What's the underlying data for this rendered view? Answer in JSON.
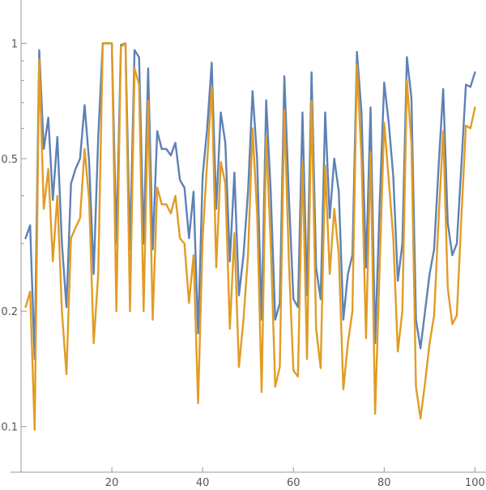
{
  "chart_data": {
    "type": "line",
    "title": "",
    "xlabel": "",
    "ylabel": "",
    "y_scale": "log",
    "xlim": [
      0,
      101
    ],
    "ylim": [
      0.076,
      1.26
    ],
    "x_ticks": [
      20,
      40,
      60,
      80,
      100
    ],
    "x_tick_labels": [
      "20",
      "40",
      "60",
      "80",
      "100"
    ],
    "y_ticks": [
      0.1,
      0.2,
      0.5,
      1
    ],
    "y_tick_labels": [
      "0.1",
      "0.2",
      "0.5",
      "1"
    ],
    "grid": false,
    "legend": "none",
    "x": [
      1,
      2,
      3,
      4,
      5,
      6,
      7,
      8,
      9,
      10,
      11,
      12,
      13,
      14,
      15,
      16,
      17,
      18,
      19,
      20,
      21,
      22,
      23,
      24,
      25,
      26,
      27,
      28,
      29,
      30,
      31,
      32,
      33,
      34,
      35,
      36,
      37,
      38,
      39,
      40,
      41,
      42,
      43,
      44,
      45,
      46,
      47,
      48,
      49,
      50,
      51,
      52,
      53,
      54,
      55,
      56,
      57,
      58,
      59,
      60,
      61,
      62,
      63,
      64,
      65,
      66,
      67,
      68,
      69,
      70,
      71,
      72,
      73,
      74,
      75,
      76,
      77,
      78,
      79,
      80,
      81,
      82,
      83,
      84,
      85,
      86,
      87,
      88,
      89,
      90,
      91,
      92,
      93,
      94,
      95,
      96,
      97,
      98,
      99,
      100
    ],
    "series": [
      {
        "color": "#5E81B5",
        "values": [
          0.31,
          0.335,
          0.15,
          0.96,
          0.53,
          0.64,
          0.39,
          0.57,
          0.3,
          0.205,
          0.43,
          0.47,
          0.5,
          0.69,
          0.49,
          0.25,
          0.57,
          1.0,
          1.0,
          1.0,
          0.3,
          0.99,
          1.0,
          0.29,
          0.96,
          0.92,
          0.3,
          0.86,
          0.29,
          0.59,
          0.53,
          0.53,
          0.51,
          0.55,
          0.44,
          0.42,
          0.31,
          0.41,
          0.175,
          0.45,
          0.6,
          0.89,
          0.37,
          0.66,
          0.55,
          0.27,
          0.46,
          0.22,
          0.28,
          0.41,
          0.75,
          0.5,
          0.19,
          0.71,
          0.41,
          0.19,
          0.21,
          0.82,
          0.4,
          0.215,
          0.205,
          0.66,
          0.22,
          0.84,
          0.26,
          0.215,
          0.66,
          0.35,
          0.5,
          0.41,
          0.19,
          0.25,
          0.28,
          0.95,
          0.66,
          0.26,
          0.68,
          0.165,
          0.38,
          0.79,
          0.62,
          0.45,
          0.24,
          0.3,
          0.92,
          0.72,
          0.19,
          0.16,
          0.2,
          0.25,
          0.29,
          0.48,
          0.76,
          0.34,
          0.28,
          0.3,
          0.48,
          0.78,
          0.77,
          0.84
        ]
      },
      {
        "color": "#E19C24",
        "values": [
          0.205,
          0.225,
          0.098,
          0.91,
          0.37,
          0.47,
          0.27,
          0.4,
          0.2,
          0.137,
          0.31,
          0.33,
          0.35,
          0.53,
          0.39,
          0.165,
          0.25,
          1.0,
          1.0,
          1.0,
          0.2,
          0.98,
          1.0,
          0.2,
          0.86,
          0.78,
          0.2,
          0.71,
          0.19,
          0.42,
          0.38,
          0.38,
          0.36,
          0.4,
          0.31,
          0.3,
          0.21,
          0.28,
          0.115,
          0.31,
          0.49,
          0.77,
          0.26,
          0.49,
          0.43,
          0.18,
          0.32,
          0.143,
          0.19,
          0.28,
          0.6,
          0.36,
          0.123,
          0.57,
          0.3,
          0.127,
          0.143,
          0.67,
          0.27,
          0.14,
          0.135,
          0.49,
          0.15,
          0.71,
          0.18,
          0.142,
          0.48,
          0.25,
          0.37,
          0.28,
          0.125,
          0.165,
          0.2,
          0.88,
          0.5,
          0.17,
          0.52,
          0.108,
          0.26,
          0.62,
          0.44,
          0.31,
          0.157,
          0.2,
          0.8,
          0.55,
          0.127,
          0.105,
          0.13,
          0.165,
          0.195,
          0.35,
          0.59,
          0.23,
          0.185,
          0.195,
          0.35,
          0.61,
          0.6,
          0.68
        ]
      }
    ]
  }
}
